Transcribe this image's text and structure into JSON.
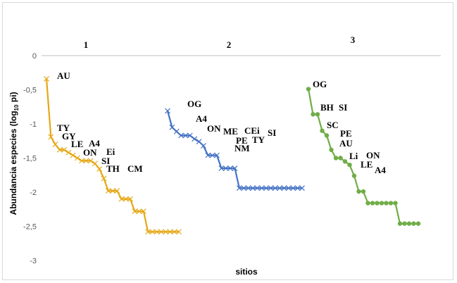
{
  "chart_data": {
    "type": "line",
    "title": "",
    "xlabel": "sitios",
    "ylabel": "Abundancia especies (log",
    "ylabel_sub": "10",
    "ylabel_end": " pi)",
    "ylim": [
      -3,
      0
    ],
    "yticks": [
      "0",
      "-0,5",
      "-1",
      "-1,5",
      "-2",
      "-2,5",
      "-3"
    ],
    "ytick_values": [
      0,
      -0.5,
      -1,
      -1.5,
      -2,
      -2.5,
      -3
    ],
    "grid": false,
    "legend": "none",
    "panels": [
      {
        "group_label": "1",
        "color": "#E6A817",
        "marker": "x",
        "x": [
          1,
          2,
          3,
          4,
          5,
          6,
          7,
          8,
          9,
          10,
          11,
          12,
          13,
          14,
          15,
          16,
          17,
          18,
          19,
          20,
          21,
          22,
          23,
          24,
          25,
          26,
          27,
          28,
          29,
          30,
          31
        ],
        "y": [
          -0.34,
          -1.19,
          -1.3,
          -1.38,
          -1.38,
          -1.42,
          -1.46,
          -1.5,
          -1.54,
          -1.54,
          -1.54,
          -1.58,
          -1.66,
          -1.8,
          -1.98,
          -1.98,
          -1.98,
          -2.1,
          -2.1,
          -2.1,
          -2.28,
          -2.28,
          -2.28,
          -2.58,
          -2.58,
          -2.58,
          -2.58,
          -2.58,
          -2.58,
          -2.58,
          -2.58
        ],
        "labels": [
          "AU",
          "TY",
          "GY",
          "LE",
          "A4",
          "ON",
          "Ei",
          "SI",
          "TH",
          "CM"
        ]
      },
      {
        "group_label": "2",
        "color": "#4472C4",
        "marker": "x",
        "x": [
          1,
          2,
          3,
          4,
          5,
          6,
          7,
          8,
          9,
          10,
          11,
          12,
          13,
          14,
          15,
          16,
          17,
          18,
          19,
          20,
          21,
          22,
          23,
          24,
          25,
          26,
          27,
          28,
          29,
          30,
          31
        ],
        "y": [
          -0.81,
          -1.05,
          -1.11,
          -1.17,
          -1.17,
          -1.17,
          -1.22,
          -1.26,
          -1.32,
          -1.46,
          -1.46,
          -1.46,
          -1.65,
          -1.65,
          -1.65,
          -1.65,
          -1.94,
          -1.94,
          -1.94,
          -1.94,
          -1.94,
          -1.94,
          -1.94,
          -1.94,
          -1.94,
          -1.94,
          -1.94,
          -1.94,
          -1.94,
          -1.94,
          -1.94
        ],
        "labels": [
          "OG",
          "A4",
          "ON",
          "ME",
          "CEi",
          "SI",
          "PE",
          "TY",
          "NM"
        ]
      },
      {
        "group_label": "3",
        "color": "#70AD47",
        "marker": "circle",
        "x": [
          1,
          2,
          3,
          4,
          5,
          6,
          7,
          8,
          9,
          10,
          11,
          12,
          13,
          14,
          15,
          16,
          17,
          18,
          19,
          20,
          21,
          22,
          23,
          24,
          25
        ],
        "y": [
          -0.49,
          -0.86,
          -0.86,
          -1.1,
          -1.17,
          -1.38,
          -1.5,
          -1.5,
          -1.55,
          -1.6,
          -1.76,
          -1.99,
          -1.99,
          -2.16,
          -2.16,
          -2.16,
          -2.16,
          -2.16,
          -2.16,
          -2.16,
          -2.46,
          -2.46,
          -2.46,
          -2.46,
          -2.46
        ],
        "labels": [
          "OG",
          "BH",
          "SI",
          "SC",
          "PE",
          "AU",
          "Li",
          "ON",
          "LE",
          "A4"
        ]
      }
    ]
  }
}
